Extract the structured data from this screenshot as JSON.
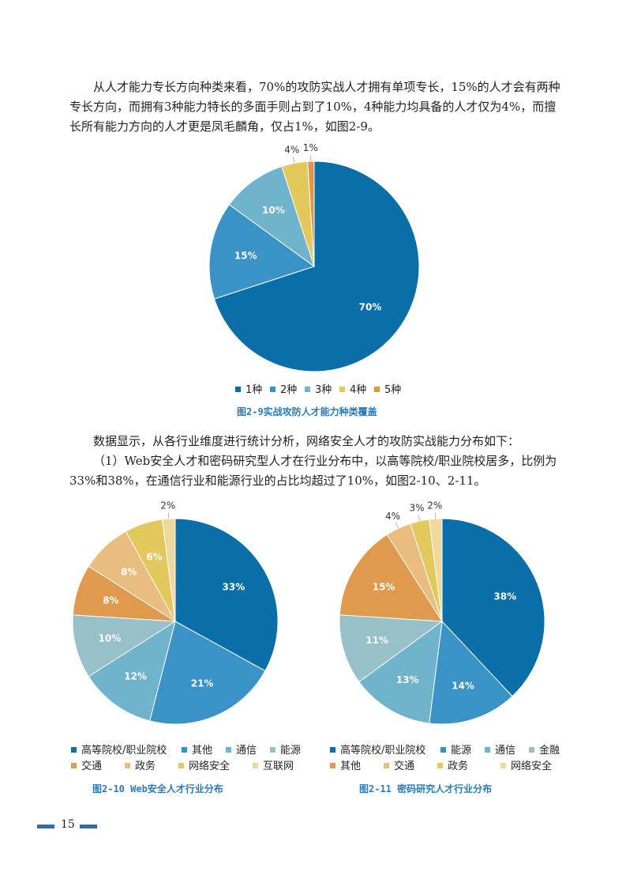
{
  "paragraphs": {
    "p1": "从人才能力专长方向种类来看，70%的攻防实战人才拥有单项专长，15%的人才会有两种专长方向，而拥有3种能力特长的多面手则占到了10%，4种能力均具备的人才仅为4%，而擅长所有能力方向的人才更是凤毛麟角，仅占1%，如图2-9。",
    "p2": "数据显示，从各行业维度进行统计分析，网络安全人才的攻防实战能力分布如下：",
    "p3": "（1）Web安全人才和密码研究型人才在行业分布中，以高等院校/职业院校居多，比例为33%和38%，在通信行业和能源行业的占比均超过了10%，如图2-10、2-11。"
  },
  "captions": {
    "fig9": "图2-9实战攻防人才能力种类覆盖",
    "fig10": "图2-10 Web安全人才行业分布",
    "fig11": "图2-11 密码研究人才行业分布"
  },
  "page_number": "15",
  "chart_data": [
    {
      "type": "pie",
      "categories": [
        "1种",
        "2种",
        "3种",
        "4种",
        "5种"
      ],
      "values": [
        70,
        15,
        10,
        4,
        1
      ],
      "labels": [
        "70%",
        "15%",
        "10%",
        "4%",
        "1%"
      ],
      "colors": [
        "#0a6ea8",
        "#3a93c6",
        "#6fb3cd",
        "#e3c95c",
        "#e0954a"
      ],
      "title": "图2-9实战攻防人才能力种类覆盖"
    },
    {
      "type": "pie",
      "categories": [
        "高等院校/职业院校",
        "其他",
        "通信",
        "能源",
        "交通",
        "政务",
        "网络安全",
        "互联网"
      ],
      "values": [
        33,
        21,
        12,
        10,
        8,
        8,
        6,
        2
      ],
      "labels": [
        "33%",
        "21%",
        "12%",
        "10%",
        "8%",
        "8%",
        "6%",
        "2%"
      ],
      "colors": [
        "#0a6ea8",
        "#3a93c6",
        "#6fb3cd",
        "#97c0c8",
        "#e09a4d",
        "#e9bd80",
        "#e3c95c",
        "#eed89c"
      ],
      "title": "图2-10 Web安全人才行业分布"
    },
    {
      "type": "pie",
      "categories": [
        "高等院校/职业院校",
        "能源",
        "通信",
        "金融",
        "其他",
        "交通",
        "政务",
        "网络安全"
      ],
      "values": [
        38,
        14,
        13,
        11,
        15,
        4,
        3,
        2
      ],
      "labels": [
        "38%",
        "14%",
        "13%",
        "11%",
        "15%",
        "4%",
        "3%",
        "2%"
      ],
      "colors": [
        "#0a6ea8",
        "#3a93c6",
        "#6fb3cd",
        "#97c0c8",
        "#e09a4d",
        "#e9bd80",
        "#e3c95c",
        "#eed89c"
      ],
      "title": "图2-11 密码研究人才行业分布"
    }
  ]
}
